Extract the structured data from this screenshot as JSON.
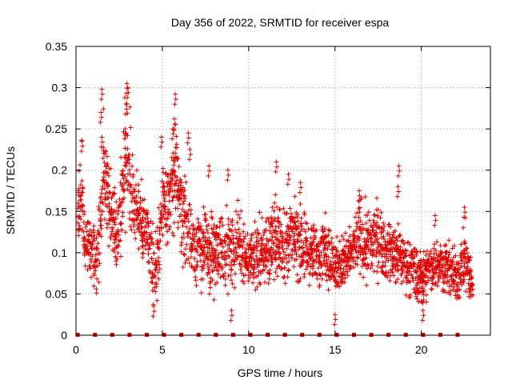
{
  "chart_data": {
    "type": "scatter",
    "title": "Day 356 of 2022, SRMTID for receiver espa",
    "xlabel": "GPS time / hours",
    "ylabel": "SRMTID / TECUs",
    "xlim": [
      0,
      24
    ],
    "ylim": [
      0,
      0.35
    ],
    "x_ticks": [
      0,
      5,
      10,
      15,
      20
    ],
    "y_ticks": [
      0,
      0.05,
      0.1,
      0.15,
      0.2,
      0.25,
      0.3,
      0.35
    ],
    "x_tick_labels": [
      "0",
      "5",
      "10",
      "15",
      "20"
    ],
    "y_tick_labels": [
      "0",
      "0.05",
      "0.1",
      "0.15",
      "0.2",
      "0.25",
      "0.3",
      "0.35"
    ],
    "grid": true,
    "marker": "+",
    "color": "#dd0000",
    "baseline_markers_x": [
      0.1,
      1.1,
      2.1,
      3.1,
      4.1,
      5.1,
      6.1,
      7.1,
      8.1,
      9.1,
      10.1,
      11.1,
      12.1,
      13.1,
      14.1,
      15.1,
      16.1,
      17.1,
      18.1,
      19.1,
      20.1,
      21.1,
      22.1
    ],
    "series": [
      {
        "name": "SRMTID",
        "envelope": {
          "x_hours": [
            0,
            0.3,
            0.5,
            0.8,
            1.2,
            1.6,
            2.0,
            2.4,
            2.8,
            3.0,
            3.4,
            3.8,
            4.2,
            4.6,
            5.0,
            5.4,
            5.8,
            6.2,
            6.6,
            7.0,
            7.5,
            8.0,
            8.5,
            9.0,
            9.5,
            10.0,
            10.5,
            11.0,
            11.5,
            12.0,
            12.5,
            13.0,
            13.5,
            14.0,
            14.5,
            15.0,
            15.5,
            16.0,
            16.5,
            17.0,
            17.5,
            18.0,
            18.5,
            19.0,
            19.5,
            20.0,
            20.5,
            21.0,
            21.5,
            22.0,
            22.5,
            23.0
          ],
          "typical_srmtid": [
            0.13,
            0.18,
            0.11,
            0.1,
            0.09,
            0.2,
            0.15,
            0.12,
            0.2,
            0.22,
            0.15,
            0.14,
            0.12,
            0.08,
            0.15,
            0.16,
            0.2,
            0.15,
            0.12,
            0.1,
            0.11,
            0.1,
            0.11,
            0.1,
            0.11,
            0.09,
            0.1,
            0.1,
            0.12,
            0.11,
            0.12,
            0.11,
            0.1,
            0.1,
            0.11,
            0.08,
            0.09,
            0.1,
            0.12,
            0.11,
            0.12,
            0.1,
            0.1,
            0.09,
            0.08,
            0.07,
            0.08,
            0.09,
            0.08,
            0.07,
            0.09,
            0.06
          ],
          "spread": [
            0.03,
            0.05,
            0.03,
            0.03,
            0.03,
            0.06,
            0.04,
            0.04,
            0.06,
            0.07,
            0.04,
            0.04,
            0.04,
            0.04,
            0.05,
            0.05,
            0.06,
            0.05,
            0.04,
            0.04,
            0.04,
            0.04,
            0.04,
            0.04,
            0.04,
            0.03,
            0.04,
            0.04,
            0.04,
            0.04,
            0.04,
            0.04,
            0.04,
            0.03,
            0.04,
            0.03,
            0.03,
            0.03,
            0.04,
            0.04,
            0.04,
            0.03,
            0.03,
            0.03,
            0.03,
            0.03,
            0.03,
            0.03,
            0.03,
            0.03,
            0.04,
            0.02
          ]
        },
        "peaks": [
          {
            "x": 1.5,
            "y": 0.298
          },
          {
            "x": 1.45,
            "y": 0.27
          },
          {
            "x": 1.5,
            "y": 0.24
          },
          {
            "x": 0.35,
            "y": 0.235
          },
          {
            "x": 2.95,
            "y": 0.305
          },
          {
            "x": 3.0,
            "y": 0.3
          },
          {
            "x": 2.9,
            "y": 0.28
          },
          {
            "x": 2.85,
            "y": 0.25
          },
          {
            "x": 5.75,
            "y": 0.292
          },
          {
            "x": 5.7,
            "y": 0.262
          },
          {
            "x": 5.6,
            "y": 0.25
          },
          {
            "x": 4.95,
            "y": 0.24
          },
          {
            "x": 6.5,
            "y": 0.245
          },
          {
            "x": 6.6,
            "y": 0.225
          },
          {
            "x": 7.7,
            "y": 0.205
          },
          {
            "x": 8.8,
            "y": 0.2
          },
          {
            "x": 11.6,
            "y": 0.21
          },
          {
            "x": 12.3,
            "y": 0.195
          },
          {
            "x": 13.0,
            "y": 0.185
          },
          {
            "x": 16.4,
            "y": 0.175
          },
          {
            "x": 18.7,
            "y": 0.205
          },
          {
            "x": 18.65,
            "y": 0.18
          },
          {
            "x": 20.8,
            "y": 0.145
          },
          {
            "x": 22.5,
            "y": 0.155
          },
          {
            "x": 9.0,
            "y": 0.03
          },
          {
            "x": 4.5,
            "y": 0.035
          },
          {
            "x": 15.0,
            "y": 0.025
          },
          {
            "x": 20.1,
            "y": 0.03
          }
        ]
      }
    ]
  }
}
